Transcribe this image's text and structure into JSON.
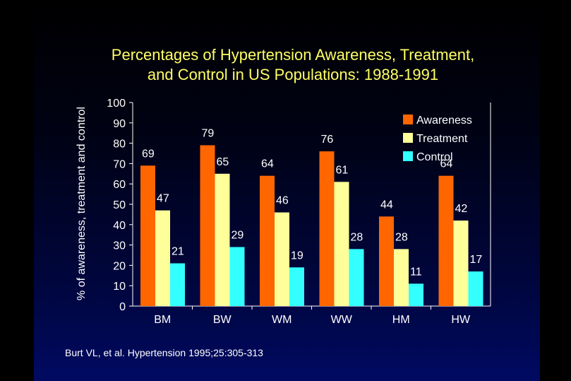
{
  "chart_data": {
    "type": "bar",
    "title": "Percentages of Hypertension Awareness, Treatment, and Control in US Populations: 1988-1991",
    "title_lines": [
      "Percentages of Hypertension Awareness, Treatment,",
      "and Control in US Populations: 1988-1991"
    ],
    "xlabel": "",
    "ylabel": "% of awareness, treatment and control",
    "ylim": [
      0,
      100
    ],
    "yticks": [
      0,
      10,
      20,
      30,
      40,
      50,
      60,
      70,
      80,
      90,
      100
    ],
    "categories": [
      "BM",
      "BW",
      "WM",
      "WW",
      "HM",
      "HW"
    ],
    "series": [
      {
        "name": "Awareness",
        "color": "#ff6600",
        "values": [
          69,
          79,
          64,
          76,
          44,
          64
        ]
      },
      {
        "name": "Treatment",
        "color": "#ffff99",
        "values": [
          47,
          65,
          46,
          61,
          28,
          42
        ]
      },
      {
        "name": "Control",
        "color": "#33ffff",
        "values": [
          21,
          29,
          19,
          28,
          11,
          17
        ]
      }
    ],
    "legend_position": "top-right",
    "grid": false,
    "text_color": "#ffffff",
    "title_color": "#ffff66"
  },
  "citation": "Burt VL, et al. Hypertension 1995;25:305-313"
}
